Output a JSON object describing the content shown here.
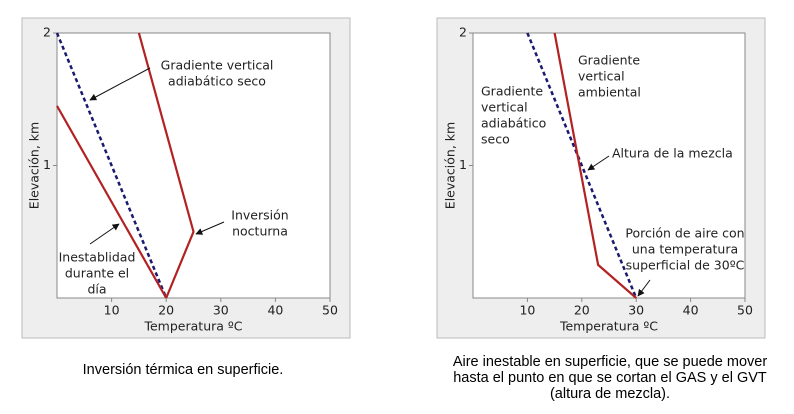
{
  "chart_data": [
    {
      "type": "line",
      "xlim": [
        0,
        50
      ],
      "ylim": [
        0,
        2
      ],
      "xticks": [
        10,
        20,
        30,
        40,
        50
      ],
      "yticks": [
        1,
        2
      ],
      "xlabel": "Temperatura ºC",
      "ylabel": "Elevación, km",
      "series": [
        {
          "color": "#1a1a6e",
          "dashed": true,
          "x": [
            0,
            20
          ],
          "values": [
            2,
            0
          ]
        },
        {
          "color": "#b22222",
          "dashed": false,
          "x": [
            15,
            25,
            20
          ],
          "values": [
            2,
            0.5,
            0
          ]
        },
        {
          "color": "#b22222",
          "dashed": false,
          "x": [
            0,
            20
          ],
          "values": [
            1.45,
            0
          ]
        }
      ],
      "annotations": [
        {
          "lines": [
            "Gradiente vertical",
            "adiabático seco"
          ]
        },
        {
          "lines": [
            "Inversión",
            "nocturna"
          ]
        },
        {
          "lines": [
            "Inestablidad",
            "durante el",
            "día"
          ]
        }
      ],
      "caption": [
        "Inversión térmica en superficie."
      ]
    },
    {
      "type": "line",
      "xlim": [
        0,
        50
      ],
      "ylim": [
        0,
        2
      ],
      "xticks": [
        10,
        20,
        30,
        40,
        50
      ],
      "yticks": [
        1,
        2
      ],
      "xlabel": "Temperatura ºC",
      "ylabel": "Elevación, km",
      "series": [
        {
          "color": "#1a1a6e",
          "dashed": true,
          "x": [
            10,
            30
          ],
          "values": [
            2,
            0
          ]
        },
        {
          "color": "#b22222",
          "dashed": false,
          "x": [
            15,
            23,
            30
          ],
          "values": [
            2,
            0.25,
            0
          ]
        }
      ],
      "annotations": [
        {
          "lines": [
            "Gradiente",
            "vertical",
            "adiabático",
            "seco"
          ]
        },
        {
          "lines": [
            "Gradiente",
            "vertical",
            "ambiental"
          ]
        },
        {
          "lines": [
            "Altura de la mezcla"
          ]
        },
        {
          "lines": [
            "Porción de aire con",
            "una temperatura",
            "superficial de 30ºC"
          ]
        }
      ],
      "caption": [
        "Aire inestable en superficie, que se puede mover",
        "hasta el punto  en que se cortan el GAS y el GVT",
        "(altura  de mezcla)."
      ]
    }
  ]
}
